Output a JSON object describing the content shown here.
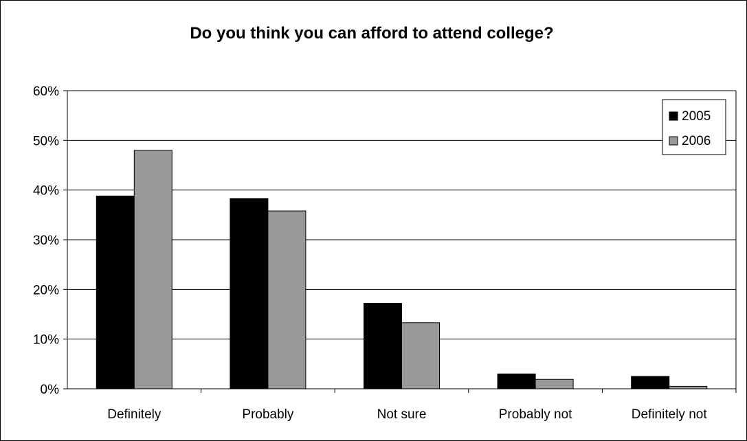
{
  "chart_data": {
    "type": "bar",
    "title": "Do you think you can afford to attend college?",
    "xlabel": "",
    "ylabel": "",
    "categories": [
      "Definitely",
      "Probably",
      "Not sure",
      "Probably not",
      "Definitely not"
    ],
    "series": [
      {
        "name": "2005",
        "values": [
          38.8,
          38.3,
          17.2,
          3.0,
          2.5
        ],
        "color": "#000000"
      },
      {
        "name": "2006",
        "values": [
          48.0,
          35.8,
          13.3,
          1.9,
          0.5
        ],
        "color": "#999999"
      }
    ],
    "ylim": [
      0,
      60
    ],
    "yticks": [
      0,
      10,
      20,
      30,
      40,
      50,
      60
    ],
    "ytick_labels": [
      "0%",
      "10%",
      "20%",
      "30%",
      "40%",
      "50%",
      "60%"
    ],
    "grid": true,
    "legend_position": "top-right"
  }
}
